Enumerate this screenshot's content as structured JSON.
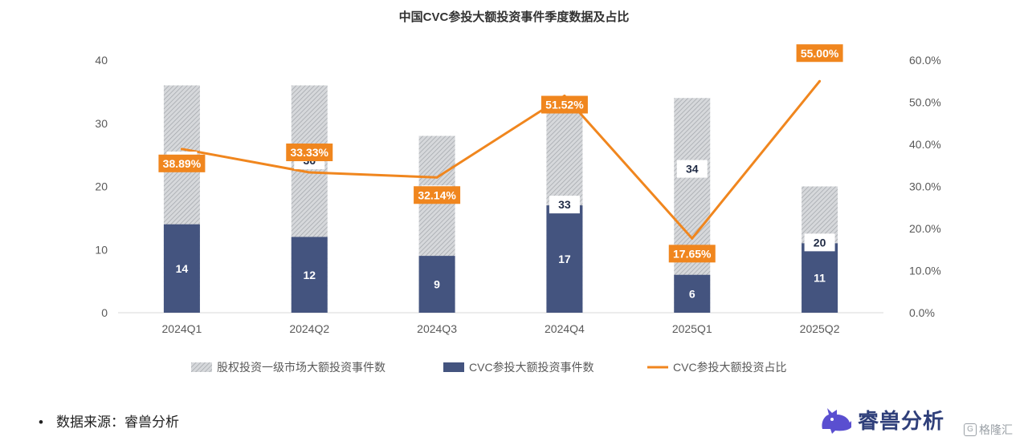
{
  "chart_data": {
    "type": "bar",
    "title": "中国CVC参投大额投资事件季度数据及占比",
    "categories": [
      "2024Q1",
      "2024Q2",
      "2024Q3",
      "2024Q4",
      "2025Q1",
      "2025Q2"
    ],
    "series": [
      {
        "name": "股权投资一级市场大额投资事件数",
        "kind": "bar",
        "values": [
          36,
          36,
          28,
          33,
          34,
          20
        ],
        "color": "#c9ccd0"
      },
      {
        "name": "CVC参投大额投资事件数",
        "kind": "bar",
        "values": [
          14,
          12,
          9,
          17,
          6,
          11
        ],
        "color": "#44547f"
      },
      {
        "name": "CVC参投大额投资占比",
        "kind": "line",
        "axis": "right",
        "values": [
          38.89,
          33.33,
          32.14,
          51.52,
          17.65,
          55.0
        ],
        "labels": [
          "38.89%",
          "33.33%",
          "32.14%",
          "51.52%",
          "17.65%",
          "55.00%"
        ],
        "color": "#f0861e"
      }
    ],
    "ylim": [
      0,
      40
    ],
    "yticks": [
      "0",
      "10",
      "20",
      "30",
      "40"
    ],
    "y2lim": [
      0,
      60
    ],
    "y2ticks": [
      "0.0%",
      "10.0%",
      "20.0%",
      "30.0%",
      "40.0%",
      "50.0%",
      "60.0%"
    ],
    "legend": "bottom",
    "grid": false
  },
  "footer": {
    "bullet": "•",
    "source_text": "数据来源：睿兽分析",
    "brand_name": "睿兽分析",
    "watermark": "格隆汇",
    "watermark_icon": "G"
  },
  "icons": {
    "brand": "beast-logo-icon"
  }
}
